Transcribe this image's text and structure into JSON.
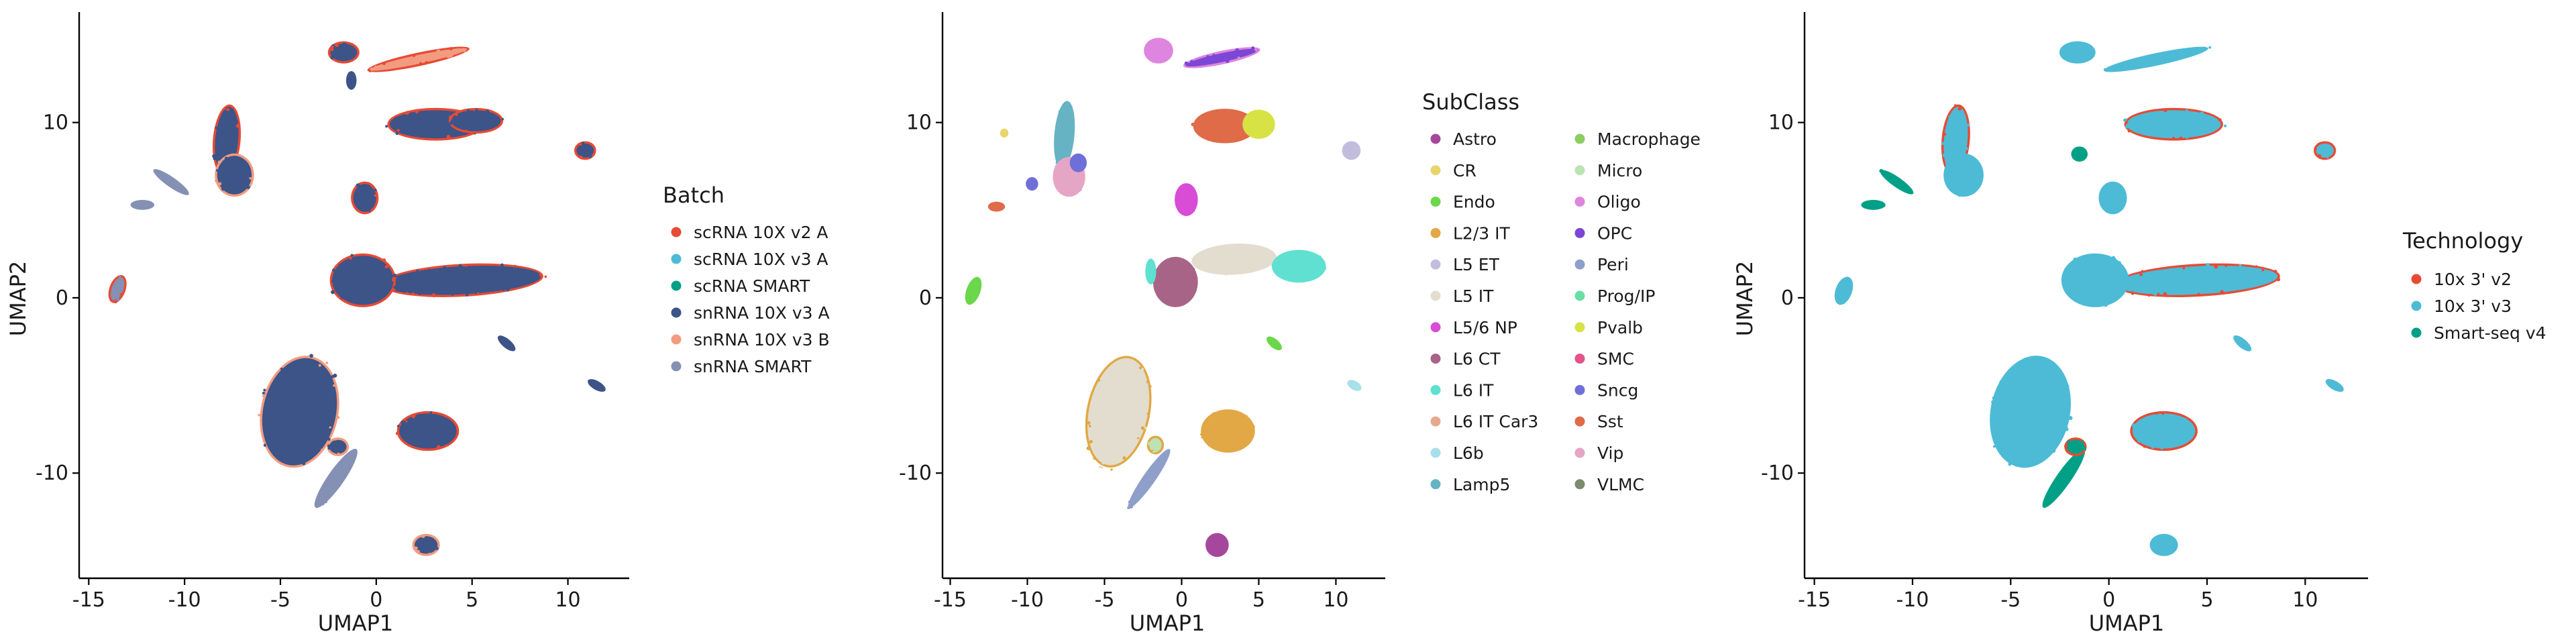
{
  "chart_data": [
    {
      "type": "scatter",
      "title": "",
      "xlabel": "UMAP1",
      "ylabel": "UMAP2",
      "xlim": [
        -15.5,
        13.2
      ],
      "ylim": [
        -16,
        16.3
      ],
      "xticks": [
        {
          "value": -15,
          "label": "-15"
        },
        {
          "value": -10,
          "label": "-10"
        },
        {
          "value": -5,
          "label": "-5"
        },
        {
          "value": 0,
          "label": "0"
        },
        {
          "value": 5,
          "label": "5"
        },
        {
          "value": 10,
          "label": "10"
        }
      ],
      "yticks": [
        {
          "value": -10,
          "label": "-10"
        },
        {
          "value": 0,
          "label": "0"
        },
        {
          "value": 10,
          "label": "10"
        }
      ],
      "grid": false,
      "legend": {
        "title": "Batch",
        "placement": "right",
        "entries": [
          {
            "label": "scRNA 10X v2 A",
            "color": "#E64B35"
          },
          {
            "label": "scRNA 10X v3 A",
            "color": "#4DBBD5"
          },
          {
            "label": "scRNA SMART",
            "color": "#00A087"
          },
          {
            "label": "snRNA 10X v3 A",
            "color": "#3C5488"
          },
          {
            "label": "snRNA 10X v3 B",
            "color": "#F39B7F"
          },
          {
            "label": "snRNA SMART",
            "color": "#8491B4"
          }
        ]
      },
      "clusters": [
        {
          "x": 4.5,
          "y": 1.0,
          "rx": 4.1,
          "ry": 0.8,
          "rot": -3,
          "color": "#3C5488",
          "edge": "#E64B35"
        },
        {
          "x": -4.0,
          "y": -6.5,
          "rx": 1.9,
          "ry": 3.1,
          "rot": 12,
          "color": "#3C5488",
          "edge": "#F39B7F"
        },
        {
          "x": -0.7,
          "y": 1.0,
          "rx": 1.6,
          "ry": 1.4,
          "rot": 0,
          "color": "#3C5488",
          "edge": "#E64B35"
        },
        {
          "x": 2.7,
          "y": -7.6,
          "rx": 1.5,
          "ry": 1.0,
          "rot": 0,
          "color": "#3C5488",
          "edge": "#E64B35"
        },
        {
          "x": 3.1,
          "y": 9.9,
          "rx": 2.4,
          "ry": 0.8,
          "rot": 0,
          "color": "#3C5488",
          "edge": "#E64B35"
        },
        {
          "x": 5.2,
          "y": 10.1,
          "rx": 1.3,
          "ry": 0.6,
          "rot": 0,
          "color": "#3C5488",
          "edge": "#E64B35"
        },
        {
          "x": -7.8,
          "y": 9.0,
          "rx": 0.6,
          "ry": 1.9,
          "rot": 5,
          "color": "#3C5488",
          "edge": "#E64B35"
        },
        {
          "x": -7.4,
          "y": 7.0,
          "rx": 0.9,
          "ry": 1.1,
          "rot": 0,
          "color": "#3C5488",
          "edge": "#F39B7F"
        },
        {
          "x": -1.7,
          "y": 14.0,
          "rx": 0.7,
          "ry": 0.5,
          "rot": 0,
          "color": "#3C5488",
          "edge": "#E64B35"
        },
        {
          "x": 2.2,
          "y": 13.6,
          "rx": 2.6,
          "ry": 0.25,
          "rot": -12,
          "color": "#F39B7F",
          "edge": "#E64B35"
        },
        {
          "x": -0.6,
          "y": 5.7,
          "rx": 0.6,
          "ry": 0.8,
          "rot": 0,
          "color": "#3C5488",
          "edge": "#E64B35"
        },
        {
          "x": 2.6,
          "y": -14.1,
          "rx": 0.6,
          "ry": 0.5,
          "rot": 0,
          "color": "#3C5488",
          "edge": "#F39B7F"
        },
        {
          "x": 10.9,
          "y": 8.4,
          "rx": 0.45,
          "ry": 0.4,
          "rot": 0,
          "color": "#3C5488",
          "edge": "#E64B35"
        },
        {
          "x": -13.5,
          "y": 0.5,
          "rx": 0.3,
          "ry": 0.7,
          "rot": 20,
          "color": "#8491B4",
          "edge": "#E64B35"
        },
        {
          "x": -10.7,
          "y": 6.6,
          "rx": 1.0,
          "ry": 0.15,
          "rot": 35,
          "color": "#8491B4",
          "edge": "#8491B4"
        },
        {
          "x": -12.2,
          "y": 5.3,
          "rx": 0.5,
          "ry": 0.15,
          "rot": 0,
          "color": "#8491B4",
          "edge": "#8491B4"
        },
        {
          "x": -2.1,
          "y": -10.3,
          "rx": 0.3,
          "ry": 1.9,
          "rot": 35,
          "color": "#8491B4",
          "edge": "#8491B4"
        },
        {
          "x": -2.0,
          "y": -8.5,
          "rx": 0.45,
          "ry": 0.4,
          "rot": 0,
          "color": "#3C5488",
          "edge": "#F39B7F"
        },
        {
          "x": 6.8,
          "y": -2.6,
          "rx": 0.45,
          "ry": 0.12,
          "rot": 40,
          "color": "#3C5488",
          "edge": "#3C5488"
        },
        {
          "x": 11.5,
          "y": -5.0,
          "rx": 0.4,
          "ry": 0.12,
          "rot": 30,
          "color": "#3C5488",
          "edge": "#3C5488"
        },
        {
          "x": -1.3,
          "y": 12.4,
          "rx": 0.15,
          "ry": 0.4,
          "rot": 0,
          "color": "#3C5488",
          "edge": "#3C5488"
        }
      ]
    },
    {
      "type": "scatter",
      "title": "",
      "xlabel": "UMAP1",
      "ylabel": "",
      "xlim": [
        -15.5,
        13.2
      ],
      "ylim": [
        -16,
        16.3
      ],
      "xticks": [
        {
          "value": -15,
          "label": "-15"
        },
        {
          "value": -10,
          "label": "-10"
        },
        {
          "value": -5,
          "label": "-5"
        },
        {
          "value": 0,
          "label": "0"
        },
        {
          "value": 5,
          "label": "5"
        },
        {
          "value": 10,
          "label": "10"
        }
      ],
      "yticks": [
        {
          "value": -10,
          "label": "-10"
        },
        {
          "value": 0,
          "label": "0"
        },
        {
          "value": 10,
          "label": "10"
        }
      ],
      "grid": false,
      "legend": {
        "title": "SubClass",
        "placement": "right",
        "columns": 2,
        "entries": [
          {
            "label": "Astro",
            "color": "#A6479E"
          },
          {
            "label": "CR",
            "color": "#E8D56B"
          },
          {
            "label": "Endo",
            "color": "#6BD74A"
          },
          {
            "label": "L2/3 IT",
            "color": "#E1A845"
          },
          {
            "label": "L5 ET",
            "color": "#C3BDDD"
          },
          {
            "label": "L5 IT",
            "color": "#E3DDCF"
          },
          {
            "label": "L5/6 NP",
            "color": "#D94CD6"
          },
          {
            "label": "L6 CT",
            "color": "#A86487"
          },
          {
            "label": "L6 IT",
            "color": "#5FE0D1"
          },
          {
            "label": "L6 IT Car3",
            "color": "#E6A98E"
          },
          {
            "label": "L6b",
            "color": "#A6E0EA"
          },
          {
            "label": "Lamp5",
            "color": "#66B3C4"
          },
          {
            "label": "Macrophage",
            "color": "#8DCB63"
          },
          {
            "label": "Micro",
            "color": "#BDE2B3"
          },
          {
            "label": "Oligo",
            "color": "#DE86DF"
          },
          {
            "label": "OPC",
            "color": "#7B47D4"
          },
          {
            "label": "Peri",
            "color": "#8E9FC9"
          },
          {
            "label": "Prog/IP",
            "color": "#68E0A3"
          },
          {
            "label": "Pvalb",
            "color": "#D7E245"
          },
          {
            "label": "SMC",
            "color": "#E2548A"
          },
          {
            "label": "Sncg",
            "color": "#6F6FD9"
          },
          {
            "label": "Sst",
            "color": "#E06B49"
          },
          {
            "label": "Vip",
            "color": "#E5A5C5"
          },
          {
            "label": "VLMC",
            "color": "#7C8A6E"
          }
        ]
      },
      "clusters": [
        {
          "x": 3.4,
          "y": 2.2,
          "rx": 2.6,
          "ry": 0.75,
          "rot": -3,
          "color": "#E3DDCF",
          "edge": "#E3DDCF"
        },
        {
          "x": 7.6,
          "y": 1.8,
          "rx": 1.6,
          "ry": 0.8,
          "rot": 0,
          "color": "#5FE0D1",
          "edge": "#5FE0D1"
        },
        {
          "x": -4.1,
          "y": -6.5,
          "rx": 1.9,
          "ry": 3.1,
          "rot": 12,
          "color": "#E3DDCF",
          "edge": "#E1A845"
        },
        {
          "x": -0.4,
          "y": 0.9,
          "rx": 1.3,
          "ry": 1.3,
          "rot": 0,
          "color": "#A86487",
          "edge": "#A86487"
        },
        {
          "x": 3.0,
          "y": -7.6,
          "rx": 1.6,
          "ry": 1.1,
          "rot": 0,
          "color": "#E1A845",
          "edge": "#E1A845"
        },
        {
          "x": 2.8,
          "y": 9.8,
          "rx": 1.9,
          "ry": 0.85,
          "rot": 0,
          "color": "#E06B49",
          "edge": "#E06B49"
        },
        {
          "x": 5.0,
          "y": 9.9,
          "rx": 0.9,
          "ry": 0.7,
          "rot": 0,
          "color": "#D7E245",
          "edge": "#D7E245"
        },
        {
          "x": -7.6,
          "y": 9.3,
          "rx": 0.5,
          "ry": 1.8,
          "rot": 5,
          "color": "#66B3C4",
          "edge": "#66B3C4"
        },
        {
          "x": -7.3,
          "y": 6.9,
          "rx": 0.9,
          "ry": 1.0,
          "rot": 0,
          "color": "#E5A5C5",
          "edge": "#E5A5C5"
        },
        {
          "x": -6.7,
          "y": 7.7,
          "rx": 0.4,
          "ry": 0.4,
          "rot": 0,
          "color": "#6F6FD9",
          "edge": "#6F6FD9"
        },
        {
          "x": -1.5,
          "y": 14.1,
          "rx": 0.8,
          "ry": 0.6,
          "rot": 0,
          "color": "#DE86DF",
          "edge": "#DE86DF"
        },
        {
          "x": 2.6,
          "y": 13.7,
          "rx": 2.4,
          "ry": 0.25,
          "rot": -12,
          "color": "#7B47D4",
          "edge": "#DE86DF"
        },
        {
          "x": 0.3,
          "y": 5.6,
          "rx": 0.6,
          "ry": 0.8,
          "rot": 0,
          "color": "#D94CD6",
          "edge": "#D94CD6"
        },
        {
          "x": 2.3,
          "y": -14.1,
          "rx": 0.6,
          "ry": 0.55,
          "rot": 0,
          "color": "#A6479E",
          "edge": "#A6479E"
        },
        {
          "x": 11.0,
          "y": 8.4,
          "rx": 0.45,
          "ry": 0.4,
          "rot": 0,
          "color": "#C3BDDD",
          "edge": "#C3BDDD"
        },
        {
          "x": -13.5,
          "y": 0.4,
          "rx": 0.3,
          "ry": 0.7,
          "rot": 20,
          "color": "#6BD74A",
          "edge": "#6BD74A"
        },
        {
          "x": -9.7,
          "y": 6.5,
          "rx": 0.25,
          "ry": 0.25,
          "rot": 0,
          "color": "#6F6FD9",
          "edge": "#6F6FD9"
        },
        {
          "x": -12.0,
          "y": 5.2,
          "rx": 0.4,
          "ry": 0.15,
          "rot": 0,
          "color": "#E06B49",
          "edge": "#E06B49"
        },
        {
          "x": -2.1,
          "y": -10.3,
          "rx": 0.25,
          "ry": 1.9,
          "rot": 35,
          "color": "#8E9FC9",
          "edge": "#8E9FC9"
        },
        {
          "x": -1.7,
          "y": -8.4,
          "rx": 0.4,
          "ry": 0.4,
          "rot": 0,
          "color": "#BDE2B3",
          "edge": "#E1A845"
        },
        {
          "x": 6.0,
          "y": -2.6,
          "rx": 0.45,
          "ry": 0.12,
          "rot": 40,
          "color": "#6BD74A",
          "edge": "#6BD74A"
        },
        {
          "x": 11.2,
          "y": -5.0,
          "rx": 0.35,
          "ry": 0.12,
          "rot": 30,
          "color": "#A6E0EA",
          "edge": "#A6E0EA"
        },
        {
          "x": -11.5,
          "y": 9.4,
          "rx": 0.12,
          "ry": 0.12,
          "rot": 0,
          "color": "#E8D56B",
          "edge": "#E8D56B"
        },
        {
          "x": -2.0,
          "y": 1.5,
          "rx": 0.2,
          "ry": 0.6,
          "rot": 0,
          "color": "#5FE0D1",
          "edge": "#5FE0D1"
        }
      ]
    },
    {
      "type": "scatter",
      "title": "",
      "xlabel": "UMAP1",
      "ylabel": "UMAP2",
      "xlim": [
        -15.5,
        13.2
      ],
      "ylim": [
        -16,
        16.3
      ],
      "xticks": [
        {
          "value": -15,
          "label": "-15"
        },
        {
          "value": -10,
          "label": "-10"
        },
        {
          "value": -5,
          "label": "-5"
        },
        {
          "value": 0,
          "label": "0"
        },
        {
          "value": 5,
          "label": "5"
        },
        {
          "value": 10,
          "label": "10"
        }
      ],
      "yticks": [
        {
          "value": -10,
          "label": "-10"
        },
        {
          "value": 0,
          "label": "0"
        },
        {
          "value": 10,
          "label": "10"
        }
      ],
      "grid": false,
      "legend": {
        "title": "Technology",
        "placement": "right",
        "entries": [
          {
            "label": "10x 3' v2",
            "color": "#E64B35"
          },
          {
            "label": "10x 3' v3",
            "color": "#4DBBD5"
          },
          {
            "label": "Smart-seq v4",
            "color": "#00A087"
          }
        ]
      },
      "clusters": [
        {
          "x": 4.5,
          "y": 1.0,
          "rx": 4.1,
          "ry": 0.8,
          "rot": -3,
          "color": "#4DBBD5",
          "edge": "#E64B35"
        },
        {
          "x": -4.0,
          "y": -6.5,
          "rx": 1.9,
          "ry": 3.1,
          "rot": 12,
          "color": "#4DBBD5",
          "edge": "#4DBBD5"
        },
        {
          "x": -0.7,
          "y": 1.0,
          "rx": 1.6,
          "ry": 1.4,
          "rot": 0,
          "color": "#4DBBD5",
          "edge": "#4DBBD5"
        },
        {
          "x": 2.8,
          "y": -7.6,
          "rx": 1.6,
          "ry": 1.0,
          "rot": 0,
          "color": "#4DBBD5",
          "edge": "#E64B35"
        },
        {
          "x": 3.3,
          "y": 9.9,
          "rx": 2.4,
          "ry": 0.8,
          "rot": 0,
          "color": "#4DBBD5",
          "edge": "#E64B35"
        },
        {
          "x": -7.8,
          "y": 9.0,
          "rx": 0.6,
          "ry": 1.9,
          "rot": 5,
          "color": "#4DBBD5",
          "edge": "#E64B35"
        },
        {
          "x": -7.4,
          "y": 7.0,
          "rx": 0.9,
          "ry": 1.1,
          "rot": 0,
          "color": "#4DBBD5",
          "edge": "#4DBBD5"
        },
        {
          "x": -1.6,
          "y": 14.0,
          "rx": 0.8,
          "ry": 0.5,
          "rot": 0,
          "color": "#4DBBD5",
          "edge": "#4DBBD5"
        },
        {
          "x": 2.4,
          "y": 13.6,
          "rx": 2.6,
          "ry": 0.22,
          "rot": -12,
          "color": "#4DBBD5",
          "edge": "#4DBBD5"
        },
        {
          "x": 0.2,
          "y": 5.7,
          "rx": 0.6,
          "ry": 0.8,
          "rot": 0,
          "color": "#4DBBD5",
          "edge": "#4DBBD5"
        },
        {
          "x": 2.8,
          "y": -14.1,
          "rx": 0.6,
          "ry": 0.5,
          "rot": 0,
          "color": "#4DBBD5",
          "edge": "#4DBBD5"
        },
        {
          "x": 11.0,
          "y": 8.4,
          "rx": 0.45,
          "ry": 0.4,
          "rot": 0,
          "color": "#4DBBD5",
          "edge": "#E64B35"
        },
        {
          "x": -13.5,
          "y": 0.4,
          "rx": 0.3,
          "ry": 0.7,
          "rot": 20,
          "color": "#4DBBD5",
          "edge": "#4DBBD5"
        },
        {
          "x": -10.8,
          "y": 6.6,
          "rx": 0.9,
          "ry": 0.15,
          "rot": 35,
          "color": "#00A087",
          "edge": "#00A087"
        },
        {
          "x": -12.0,
          "y": 5.3,
          "rx": 0.5,
          "ry": 0.15,
          "rot": 0,
          "color": "#00A087",
          "edge": "#00A087"
        },
        {
          "x": -2.3,
          "y": -10.3,
          "rx": 0.25,
          "ry": 1.9,
          "rot": 35,
          "color": "#00A087",
          "edge": "#00A087"
        },
        {
          "x": -1.7,
          "y": -8.5,
          "rx": 0.45,
          "ry": 0.4,
          "rot": 0,
          "color": "#00A087",
          "edge": "#E64B35"
        },
        {
          "x": 6.8,
          "y": -2.6,
          "rx": 0.45,
          "ry": 0.12,
          "rot": 40,
          "color": "#4DBBD5",
          "edge": "#4DBBD5"
        },
        {
          "x": 11.5,
          "y": -5.0,
          "rx": 0.4,
          "ry": 0.12,
          "rot": 30,
          "color": "#4DBBD5",
          "edge": "#4DBBD5"
        },
        {
          "x": -1.5,
          "y": 8.2,
          "rx": 0.3,
          "ry": 0.3,
          "rot": 0,
          "color": "#00A087",
          "edge": "#00A087"
        }
      ]
    }
  ]
}
